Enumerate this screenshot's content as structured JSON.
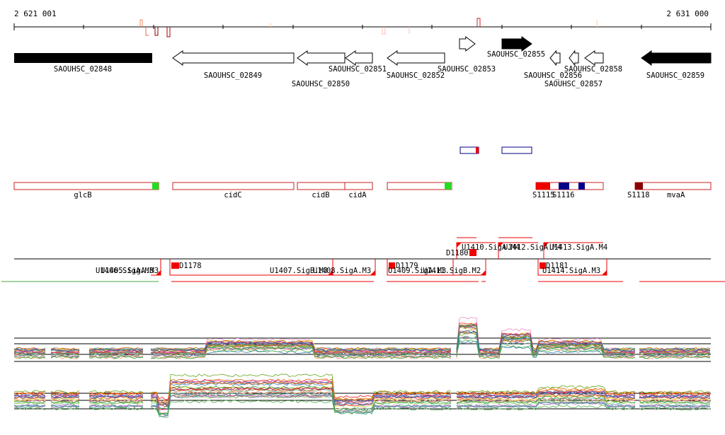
{
  "ruler": {
    "start": "2 621 001",
    "end": "2 631 000"
  },
  "genes": [
    {
      "name": "SAOUHSC_02848",
      "strand": "+",
      "filled": true
    },
    {
      "name": "SAOUHSC_02849",
      "strand": "-",
      "filled": false
    },
    {
      "name": "SAOUHSC_02850",
      "strand": "-",
      "filled": false
    },
    {
      "name": "SAOUHSC_02851",
      "strand": "-",
      "filled": false
    },
    {
      "name": "SAOUHSC_02852",
      "strand": "-",
      "filled": false
    },
    {
      "name": "SAOUHSC_02853",
      "strand": "+",
      "filled": false
    },
    {
      "name": "SAOUHSC_02855",
      "strand": "+",
      "filled": true
    },
    {
      "name": "SAOUHSC_02856",
      "strand": "-",
      "filled": false
    },
    {
      "name": "SAOUHSC_02857",
      "strand": "-",
      "filled": false
    },
    {
      "name": "SAOUHSC_02858",
      "strand": "-",
      "filled": false
    },
    {
      "name": "SAOUHSC_02859",
      "strand": "-",
      "filled": true
    }
  ],
  "operons": [
    {
      "label": "glcB"
    },
    {
      "label": "cidC"
    },
    {
      "label": "cidB"
    },
    {
      "label": "cidA"
    },
    {
      "label": "S1115"
    },
    {
      "label": "S1116"
    },
    {
      "label": "S1118"
    },
    {
      "label": "mvaA"
    }
  ],
  "units_upper": [
    {
      "label": "D1180"
    },
    {
      "label": "U1410.SigA.M4"
    },
    {
      "label": "U1412.SigA.M4"
    },
    {
      "label": "U1413.SigA.M4"
    }
  ],
  "units_lower": [
    {
      "label": "U1406.SigA.M3"
    },
    {
      "label": "U1405.SigA.M3"
    },
    {
      "label": "D1178"
    },
    {
      "label": "U1407.SigB.M3"
    },
    {
      "label": "U1408.SigA.M3"
    },
    {
      "label": "D1179"
    },
    {
      "label": "U1409.SigA.M3"
    },
    {
      "label": "U1411.SigB.M2"
    },
    {
      "label": "D1181"
    },
    {
      "label": "U1414.SigA.M3"
    }
  ],
  "colors": {
    "gene_filled": "#000000",
    "operon_box": "#cc2222",
    "unit_marker": "#ee0000",
    "green_marker": "#22dd22",
    "navy_marker": "#000088",
    "darkred_marker": "#880000"
  }
}
